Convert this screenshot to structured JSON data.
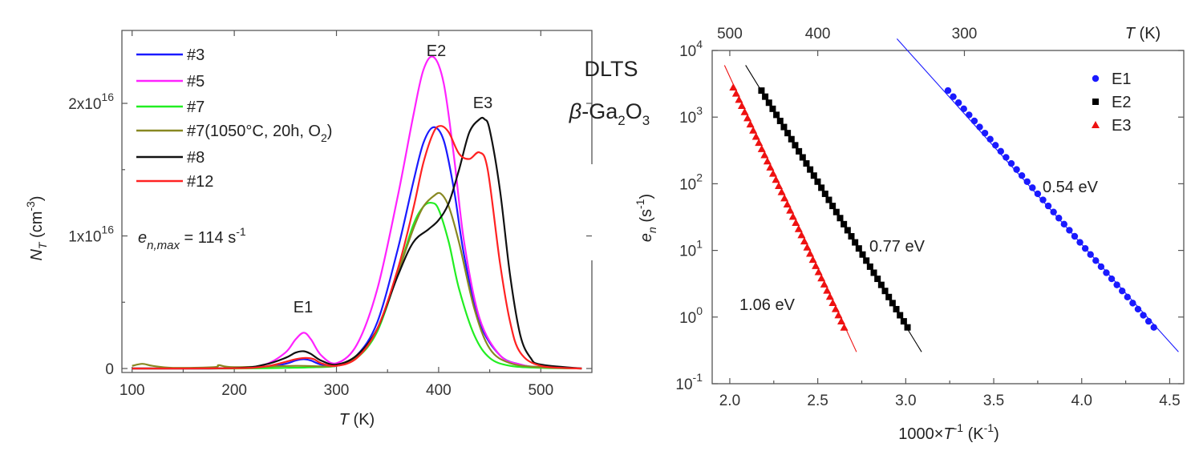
{
  "chart_data": [
    {
      "type": "line",
      "title": "",
      "xlabel": "T (K)",
      "ylabel": "N_T (cm^-3)",
      "xlim": [
        90,
        550
      ],
      "ylim": [
        -300000000000000.0,
        2.55e+16
      ],
      "xticks": [
        "100",
        "200",
        "300",
        "400",
        "500"
      ],
      "yticks": [
        "0",
        "1x10^16",
        "2x10^16"
      ],
      "legend_position": "top-left",
      "legend": [
        "#3",
        "#5",
        "#7",
        "#7(1050°C, 20h, O2)",
        "#8",
        "#12"
      ],
      "annotations": [
        "E1",
        "E2",
        "E3",
        "e_n,max = 114 s^-1"
      ],
      "side_text": [
        "DLTS",
        "β-Ga2O3"
      ],
      "series": [
        {
          "name": "#3",
          "color": "#1a1aff",
          "x": [
            100,
            200,
            230,
            250,
            260,
            268,
            275,
            285,
            300,
            320,
            340,
            360,
            375,
            385,
            395,
            405,
            415,
            425,
            440,
            460,
            480,
            500,
            540
          ],
          "y": [
            0,
            10000000000000.0,
            100000000000000.0,
            350000000000000.0,
            600000000000000.0,
            700000000000000.0,
            600000000000000.0,
            300000000000000.0,
            200000000000000.0,
            1000000000000000.0,
            3500000000000000.0,
            9000000000000000.0,
            1.4e+16,
            1.7e+16,
            1.82e+16,
            1.72e+16,
            1.35e+16,
            8500000000000000.0,
            3500000000000000.0,
            1000000000000000.0,
            300000000000000.0,
            100000000000000.0,
            0
          ]
        },
        {
          "name": "#5",
          "color": "#ff22ff",
          "x": [
            100,
            200,
            230,
            250,
            260,
            268,
            275,
            285,
            300,
            320,
            340,
            360,
            375,
            385,
            395,
            405,
            415,
            425,
            440,
            460,
            480,
            500,
            540
          ],
          "y": [
            0,
            30000000000000.0,
            300000000000000.0,
            1200000000000000.0,
            2200000000000000.0,
            2700000000000000.0,
            2200000000000000.0,
            1000000000000000.0,
            400000000000000.0,
            1800000000000000.0,
            6000000000000000.0,
            1.3e+16,
            1.9e+16,
            2.25e+16,
            2.35e+16,
            2.15e+16,
            1.6e+16,
            9500000000000000.0,
            3800000000000000.0,
            1000000000000000.0,
            300000000000000.0,
            100000000000000.0,
            0
          ]
        },
        {
          "name": "#7",
          "color": "#22ee22",
          "x": [
            100,
            200,
            250,
            280,
            300,
            320,
            340,
            360,
            375,
            385,
            393,
            400,
            410,
            420,
            435,
            450,
            470,
            500,
            540
          ],
          "y": [
            0,
            0,
            50000000000000.0,
            100000000000000.0,
            200000000000000.0,
            800000000000000.0,
            2800000000000000.0,
            7200000000000000.0,
            1.08e+16,
            1.22e+16,
            1.25e+16,
            1.2e+16,
            9500000000000000.0,
            6000000000000000.0,
            2500000000000000.0,
            800000000000000.0,
            200000000000000.0,
            50000000000000.0,
            0
          ]
        },
        {
          "name": "#7(1050°C, 20h, O2)",
          "color": "#888822",
          "x": [
            100,
            110,
            120,
            140,
            180,
            185,
            200,
            260,
            300,
            320,
            340,
            360,
            375,
            385,
            395,
            402,
            410,
            420,
            435,
            450,
            470,
            500,
            540
          ],
          "y": [
            200000000000000.0,
            350000000000000.0,
            200000000000000.0,
            50000000000000.0,
            100000000000000.0,
            250000000000000.0,
            100000000000000.0,
            200000000000000.0,
            200000000000000.0,
            900000000000000.0,
            3000000000000000.0,
            7200000000000000.0,
            1.05e+16,
            1.22e+16,
            1.3e+16,
            1.32e+16,
            1.22e+16,
            9500000000000000.0,
            4500000000000000.0,
            1500000000000000.0,
            400000000000000.0,
            100000000000000.0,
            0
          ]
        },
        {
          "name": "#8",
          "color": "#111111",
          "x": [
            100,
            200,
            230,
            250,
            260,
            268,
            275,
            285,
            300,
            320,
            340,
            360,
            375,
            390,
            400,
            410,
            420,
            430,
            440,
            445,
            450,
            460,
            470,
            480,
            490,
            500,
            540
          ],
          "y": [
            0,
            30000000000000.0,
            300000000000000.0,
            800000000000000.0,
            1200000000000000.0,
            1300000000000000.0,
            1100000000000000.0,
            600000000000000.0,
            300000000000000.0,
            1000000000000000.0,
            3000000000000000.0,
            7000000000000000.0,
            9500000000000000.0,
            1.05e+16,
            1.12e+16,
            1.25e+16,
            1.5e+16,
            1.78e+16,
            1.88e+16,
            1.88e+16,
            1.8e+16,
            1.35e+16,
            7000000000000000.0,
            2500000000000000.0,
            800000000000000.0,
            300000000000000.0,
            0
          ]
        },
        {
          "name": "#12",
          "color": "#ff2222",
          "x": [
            100,
            200,
            230,
            250,
            260,
            270,
            278,
            285,
            300,
            320,
            340,
            360,
            375,
            385,
            395,
            402,
            410,
            420,
            430,
            440,
            448,
            460,
            470,
            480,
            500,
            540
          ],
          "y": [
            0,
            20000000000000.0,
            150000000000000.0,
            500000000000000.0,
            700000000000000.0,
            800000000000000.0,
            700000000000000.0,
            400000000000000.0,
            200000000000000.0,
            800000000000000.0,
            3000000000000000.0,
            7500000000000000.0,
            1.2e+16,
            1.55e+16,
            1.78e+16,
            1.83e+16,
            1.78e+16,
            1.62e+16,
            1.58e+16,
            1.63e+16,
            1.5e+16,
            8000000000000000.0,
            3500000000000000.0,
            1200000000000000.0,
            200000000000000.0,
            0
          ]
        }
      ]
    },
    {
      "type": "scatter",
      "title": "",
      "xlabel": "1000×T^-1 (K^-1)",
      "ylabel": "e_n (s^-1)",
      "top_xlabel": "T (K)",
      "xlim": [
        1.9,
        4.58
      ],
      "ylim": [
        0.1,
        10000
      ],
      "yscale": "log",
      "xticks": [
        "2.0",
        "2.5",
        "3.0",
        "3.5",
        "4.0",
        "4.5"
      ],
      "top_xticks": [
        "500",
        "400",
        "300"
      ],
      "yticks": [
        "10^-1",
        "10^0",
        "10^1",
        "10^2",
        "10^3",
        "10^4"
      ],
      "legend_position": "top-right",
      "annotations": [
        "0.54 eV",
        "0.77 eV",
        "1.06 eV"
      ],
      "series": [
        {
          "name": "E1",
          "color": "#1a1aff",
          "marker": "circle",
          "x_range": [
            3.24,
            4.41
          ],
          "y_range": [
            2500,
            0.7
          ],
          "fit_x": [
            2.95,
            4.55
          ],
          "fit_y": [
            15000,
            0.3
          ]
        },
        {
          "name": "E2",
          "color": "#000000",
          "marker": "square",
          "x_range": [
            2.18,
            3.01
          ],
          "y_range": [
            2500,
            0.7
          ],
          "fit_x": [
            2.09,
            3.09
          ],
          "fit_y": [
            6000,
            0.3
          ]
        },
        {
          "name": "E3",
          "color": "#ee1111",
          "marker": "triangle",
          "x_range": [
            2.02,
            2.65
          ],
          "y_range": [
            2800,
            0.7
          ],
          "fit_x": [
            1.97,
            2.72
          ],
          "fit_y": [
            6000,
            0.3
          ]
        }
      ]
    }
  ]
}
